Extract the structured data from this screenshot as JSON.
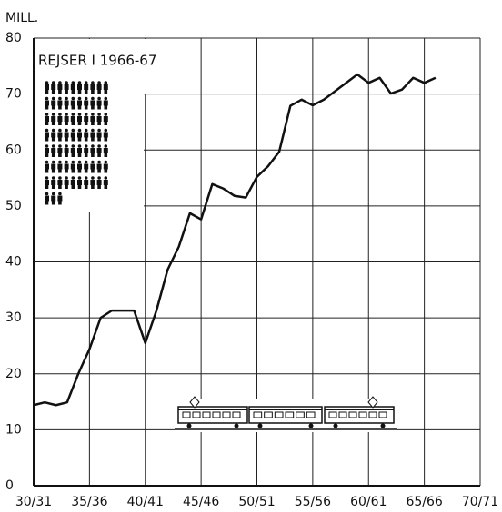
{
  "chart_data": {
    "type": "line",
    "y_label": "MILL.",
    "annotation": "REJSER I 1966-67",
    "x": [
      1930,
      1931,
      1932,
      1933,
      1934,
      1935,
      1936,
      1937,
      1938,
      1939,
      1940,
      1941,
      1942,
      1943,
      1944,
      1945,
      1946,
      1947,
      1948,
      1949,
      1950,
      1951,
      1952,
      1953,
      1954,
      1955,
      1956,
      1957,
      1958,
      1959,
      1960,
      1961,
      1962,
      1963,
      1964,
      1965,
      1966
    ],
    "values": [
      14.4,
      14.9,
      14.4,
      14.9,
      20,
      24.4,
      30,
      31.3,
      31.3,
      31.3,
      25.5,
      31.3,
      38.6,
      42.7,
      48.7,
      47.6,
      53.9,
      53.1,
      51.8,
      51.5,
      55.2,
      57.1,
      59.7,
      67.9,
      69,
      68,
      69,
      70.5,
      72,
      73.5,
      72,
      72.9,
      70.1,
      70.8,
      72.9,
      72,
      72.9
    ],
    "color": "#111111",
    "xlim": [
      1930,
      1970
    ],
    "xticks": [
      {
        "value": 1930,
        "label": "30/31"
      },
      {
        "value": 1935,
        "label": "35/36"
      },
      {
        "value": 1940,
        "label": "40/41"
      },
      {
        "value": 1945,
        "label": "45/46"
      },
      {
        "value": 1950,
        "label": "50/51"
      },
      {
        "value": 1955,
        "label": "55/56"
      },
      {
        "value": 1960,
        "label": "60/61"
      },
      {
        "value": 1965,
        "label": "65/66"
      },
      {
        "value": 1970,
        "label": "70/71"
      }
    ],
    "ylim": [
      0,
      80
    ],
    "yticks": [
      0,
      10,
      20,
      30,
      40,
      50,
      60,
      70,
      80
    ],
    "grid": true
  }
}
